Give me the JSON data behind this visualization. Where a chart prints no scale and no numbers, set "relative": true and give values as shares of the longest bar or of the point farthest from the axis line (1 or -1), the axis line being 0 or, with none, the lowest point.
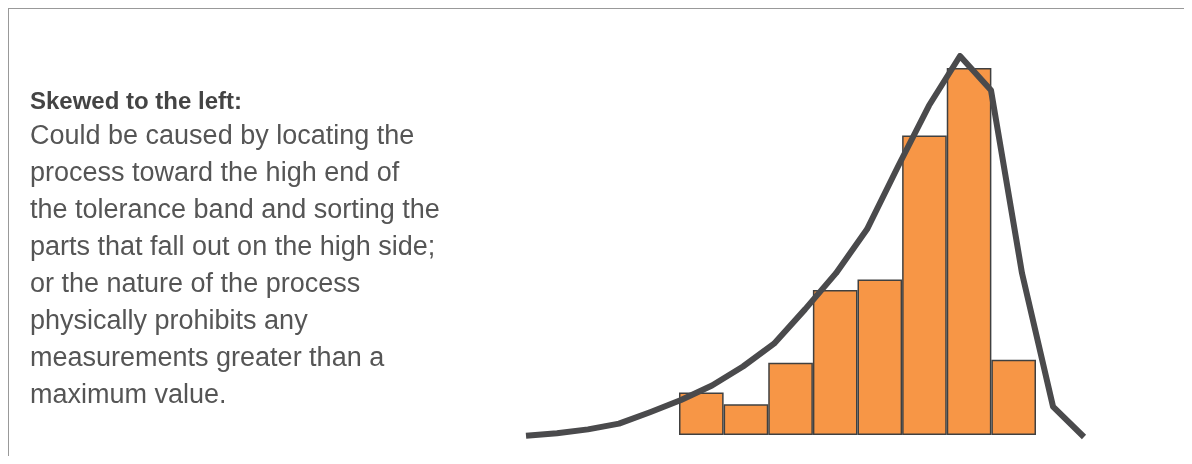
{
  "chart_data": [
    {
      "type": "other",
      "title": "Skewed to the left:",
      "annotations": [
        "Could be caused by locating the process toward the high end of the tolerance band and sorting the parts that fall out on the high side; or the nature of the process physically prohibits any measurements greater than a maximum value."
      ]
    },
    {
      "type": "bar",
      "categories": [
        null,
        null,
        null,
        null,
        null,
        null,
        null,
        null
      ],
      "values": [
        0.116,
        0.084,
        0.197,
        0.395,
        0.424,
        0.816,
        1,
        0.205
      ],
      "color": "#f79646",
      "relative": true
    },
    {
      "type": "line",
      "relative": true,
      "categories": [
        null,
        null,
        null,
        null,
        null,
        null,
        null,
        null,
        null,
        null,
        null,
        null,
        null,
        null,
        null,
        null,
        null,
        null,
        null
      ],
      "series": [
        {
          "color": "#4a4a4c",
          "values": [
            0.003,
            0.01,
            0.02,
            0.035,
            0.065,
            0.097,
            0.135,
            0.185,
            0.245,
            0.335,
            0.43,
            0.545,
            0.71,
            0.87,
            1,
            0.91,
            0.43,
            0.08,
            0
          ]
        }
      ],
      "marker": "none",
      "line_style": "solid"
    }
  ]
}
